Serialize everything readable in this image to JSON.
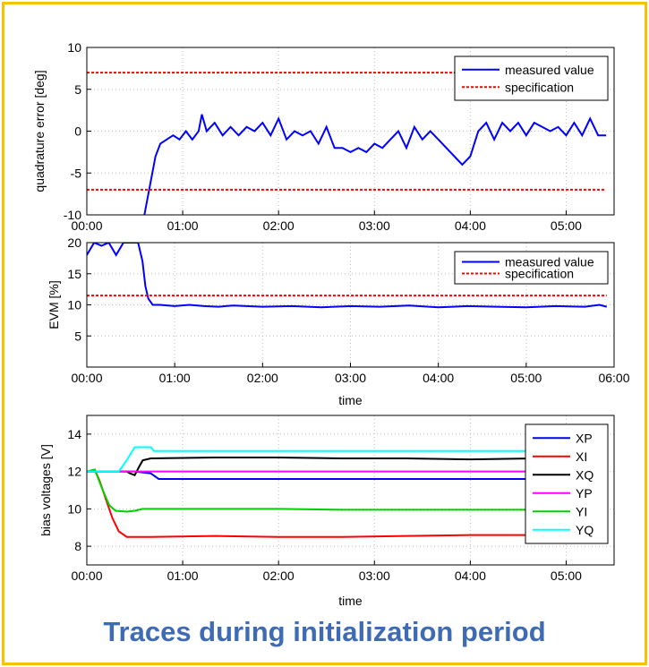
{
  "caption": "Traces during initialization period",
  "colors": {
    "frame": "#f5c400",
    "caption": "#3e6bb4"
  },
  "chart_data": [
    {
      "type": "line",
      "xlabel": "",
      "ylabel": "quadrature error [deg]",
      "xticks": [
        "00:00",
        "01:00",
        "02:00",
        "03:00",
        "04:00",
        "05:00"
      ],
      "xlim": [
        0,
        330
      ],
      "ylim": [
        -10,
        10
      ],
      "yticks": [
        -10,
        -5,
        0,
        5,
        10
      ],
      "grid": true,
      "legend": "top-right",
      "series": [
        {
          "name": "measured value",
          "color": "#0000ff",
          "style": "solid",
          "x": [
            36,
            40,
            43,
            46,
            50,
            54,
            58,
            62,
            66,
            70,
            72,
            75,
            80,
            85,
            90,
            95,
            100,
            105,
            110,
            115,
            120,
            125,
            130,
            135,
            140,
            145,
            150,
            155,
            160,
            165,
            170,
            175,
            180,
            185,
            190,
            195,
            200,
            205,
            210,
            215,
            220,
            225,
            230,
            235,
            240,
            245,
            250,
            255,
            260,
            265,
            270,
            275,
            280,
            285,
            290,
            295,
            300,
            305,
            310,
            315,
            320,
            325
          ],
          "y": [
            -10,
            -6,
            -3,
            -1.5,
            -1,
            -0.5,
            -1,
            0,
            -1,
            0,
            2,
            0,
            1,
            -0.5,
            0.5,
            -0.5,
            0.5,
            0,
            1,
            -0.5,
            1.5,
            -1,
            0,
            -0.5,
            0,
            -1.5,
            0.5,
            -2,
            -2,
            -2.5,
            -2,
            -2.5,
            -1.5,
            -2,
            -1,
            0,
            -2,
            0.5,
            -1,
            0,
            -1,
            -2,
            -3,
            -4,
            -3,
            0,
            1,
            -1,
            1,
            0,
            1,
            -0.5,
            1,
            0.5,
            0,
            0.5,
            -0.5,
            1,
            -0.5,
            1.5,
            -0.5,
            -0.5
          ]
        },
        {
          "name": "specification",
          "color": "#ff0000",
          "style": "dashed",
          "x": [
            0,
            325
          ],
          "y": [
            7,
            7
          ]
        },
        {
          "name": "",
          "color": "#ff0000",
          "style": "dashed",
          "x": [
            0,
            325
          ],
          "y": [
            -7,
            -7
          ]
        }
      ]
    },
    {
      "type": "line",
      "xlabel": "time",
      "ylabel": "EVM [%]",
      "xticks": [
        "00:00",
        "01:00",
        "02:00",
        "03:00",
        "04:00",
        "05:00",
        "06:00"
      ],
      "xlim": [
        0,
        360
      ],
      "ylim": [
        0,
        20
      ],
      "yticks": [
        5,
        10,
        15,
        20
      ],
      "grid": true,
      "legend": "top-right",
      "series": [
        {
          "name": "measured value",
          "color": "#0000ff",
          "style": "solid",
          "x": [
            0,
            5,
            10,
            15,
            20,
            25,
            30,
            35,
            38,
            40,
            42,
            45,
            50,
            60,
            70,
            80,
            90,
            100,
            120,
            140,
            160,
            180,
            200,
            220,
            240,
            260,
            280,
            300,
            320,
            340,
            350,
            355
          ],
          "y": [
            18,
            20,
            19.5,
            20,
            18,
            20,
            20,
            20,
            17,
            13,
            11,
            10,
            10,
            9.8,
            10,
            9.8,
            9.7,
            9.9,
            9.7,
            9.8,
            9.6,
            9.8,
            9.7,
            9.9,
            9.6,
            9.8,
            9.7,
            9.6,
            9.8,
            9.7,
            10,
            9.7
          ]
        },
        {
          "name": "specification",
          "color": "#ff0000",
          "style": "dashed",
          "x": [
            0,
            355
          ],
          "y": [
            11.5,
            11.5
          ]
        }
      ]
    },
    {
      "type": "line",
      "xlabel": "time",
      "ylabel": "bias voltages [V]",
      "xticks": [
        "00:00",
        "01:00",
        "02:00",
        "03:00",
        "04:00",
        "05:00"
      ],
      "xlim": [
        0,
        330
      ],
      "ylim": [
        7,
        15
      ],
      "yticks": [
        8,
        10,
        12,
        14
      ],
      "grid": true,
      "legend": "top-right",
      "series": [
        {
          "name": "XP",
          "color": "#0000ff",
          "style": "solid",
          "x": [
            0,
            10,
            20,
            25,
            30,
            40,
            45,
            320
          ],
          "y": [
            12,
            12,
            12,
            12,
            12,
            11.9,
            11.6,
            11.6
          ]
        },
        {
          "name": "XI",
          "color": "#ff0000",
          "style": "solid",
          "x": [
            0,
            5,
            8,
            12,
            16,
            20,
            25,
            30,
            40,
            80,
            120,
            160,
            200,
            240,
            280,
            320
          ],
          "y": [
            12,
            12.1,
            11.5,
            10.5,
            9.5,
            8.8,
            8.5,
            8.5,
            8.5,
            8.55,
            8.5,
            8.5,
            8.55,
            8.6,
            8.6,
            8.6
          ]
        },
        {
          "name": "XQ",
          "color": "#000000",
          "style": "solid",
          "x": [
            0,
            25,
            27,
            30,
            33,
            35,
            40,
            80,
            120,
            160,
            200,
            240,
            280,
            320
          ],
          "y": [
            12,
            12,
            11.9,
            11.8,
            12.3,
            12.6,
            12.7,
            12.75,
            12.75,
            12.7,
            12.7,
            12.65,
            12.7,
            12.7
          ]
        },
        {
          "name": "YP",
          "color": "#ff00ff",
          "style": "solid",
          "x": [
            0,
            320
          ],
          "y": [
            12,
            12
          ]
        },
        {
          "name": "YI",
          "color": "#00d000",
          "style": "solid",
          "x": [
            0,
            5,
            10,
            14,
            18,
            25,
            30,
            35,
            80,
            120,
            160,
            200,
            240,
            280,
            320
          ],
          "y": [
            12,
            12.1,
            11,
            10.2,
            9.9,
            9.85,
            9.9,
            10,
            10,
            10,
            9.95,
            9.95,
            9.95,
            9.95,
            9.95
          ]
        },
        {
          "name": "YQ",
          "color": "#00ffff",
          "style": "solid",
          "x": [
            0,
            20,
            25,
            30,
            40,
            42,
            45,
            80,
            120,
            160,
            200,
            240,
            280,
            320
          ],
          "y": [
            12,
            12,
            12.6,
            13.3,
            13.3,
            13.1,
            13.1,
            13.1,
            13.1,
            13.1,
            13.1,
            13.1,
            13.1,
            13.1
          ]
        }
      ]
    }
  ]
}
